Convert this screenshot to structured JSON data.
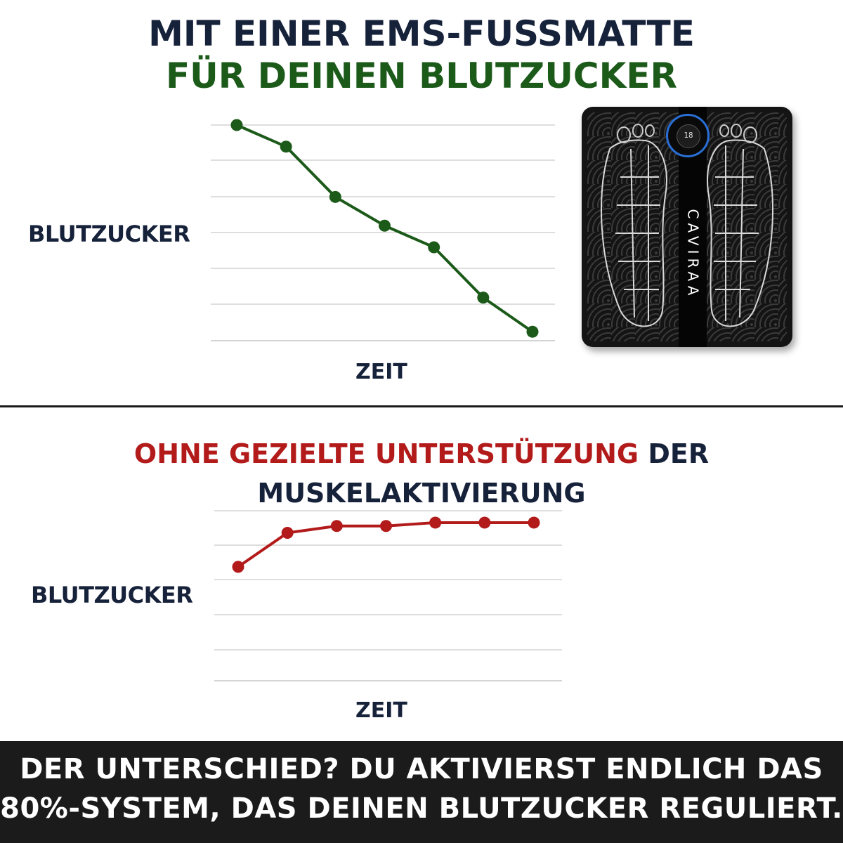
{
  "headline": {
    "line1": "MIT EINER EMS-FUSSMATTE",
    "line2": "FÜR DEINEN BLUTZUCKER",
    "section2_red": "OHNE GEZIELTE UNTERSTÜTZUNG",
    "section2_dark": "DER MUSKELAKTIVIERUNG"
  },
  "product": {
    "brand": "CAVIRAA",
    "display": "18",
    "icon": "ems-foot-mat-image"
  },
  "colors": {
    "green": "#1c5a1a",
    "red": "#b31b1b",
    "dark": "#16213a",
    "grid": "#d4d4d4",
    "footer_bg": "#1b1b1b"
  },
  "footer": {
    "line1": "DER UNTERSCHIED? DU AKTIVIERST ENDLICH DAS",
    "line2": "80%-SYSTEM, DAS DEINEN BLUTZUCKER REGULIERT."
  },
  "chart_data": [
    {
      "type": "line",
      "xlabel": "ZEIT",
      "ylabel": "BLUTZUCKER",
      "x": [
        1,
        2,
        3,
        4,
        5,
        6,
        7
      ],
      "values": [
        6.0,
        5.4,
        4.0,
        3.2,
        2.6,
        1.2,
        0.25
      ],
      "ylim": [
        0,
        6
      ],
      "grid": true,
      "color": "#1c5a1a"
    },
    {
      "type": "line",
      "xlabel": "ZEIT",
      "ylabel": "BLUTZUCKER",
      "x": [
        1,
        2,
        3,
        4,
        5,
        6,
        7
      ],
      "values": [
        3.35,
        4.35,
        4.55,
        4.55,
        4.65,
        4.65,
        4.65
      ],
      "ylim": [
        0,
        5
      ],
      "grid": true,
      "color": "#b31b1b"
    }
  ]
}
